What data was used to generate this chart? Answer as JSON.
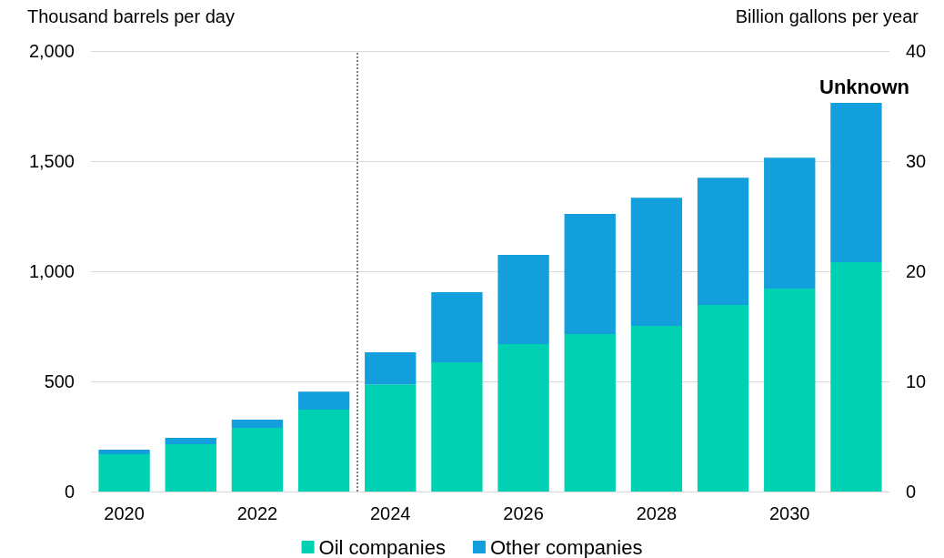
{
  "chart_data": {
    "type": "bar",
    "stacked": true,
    "ylabel": "Thousand barrels per day",
    "y2label": "Billion gallons per year",
    "x": [
      2020,
      2021,
      2022,
      2023,
      2024,
      2025,
      2026,
      2027,
      2028,
      2029,
      2030,
      2031
    ],
    "xlim": [
      2019.5,
      2031.5
    ],
    "xticks": [
      2020,
      2022,
      2024,
      2026,
      2028,
      2030
    ],
    "series": [
      {
        "name": "Oil companies",
        "color": "#00d1b2",
        "values": [
          169,
          215,
          289,
          372,
          487,
          587,
          669,
          715,
          752,
          847,
          921,
          1041
        ]
      },
      {
        "name": "Other companies",
        "color": "#139fdb",
        "values": [
          21,
          29,
          37,
          82,
          145,
          318,
          405,
          545,
          582,
          578,
          595,
          723
        ]
      }
    ],
    "ylim": [
      0,
      2000
    ],
    "yticks": [
      0,
      500,
      {
        "value": 1000,
        "label": "1,000"
      },
      {
        "value": 1500,
        "label": "1,500"
      },
      {
        "value": 2000,
        "label": "2,000"
      }
    ],
    "y2lim": [
      0,
      40
    ],
    "y2ticks": [
      0,
      10,
      20,
      30,
      40
    ],
    "ref_lines": [
      {
        "axis": "x",
        "value": 2023.5,
        "color": "#808080",
        "line_style": "dotted"
      }
    ],
    "annotations": [
      "Unknown"
    ],
    "grid": "y",
    "legend": "bottom"
  }
}
